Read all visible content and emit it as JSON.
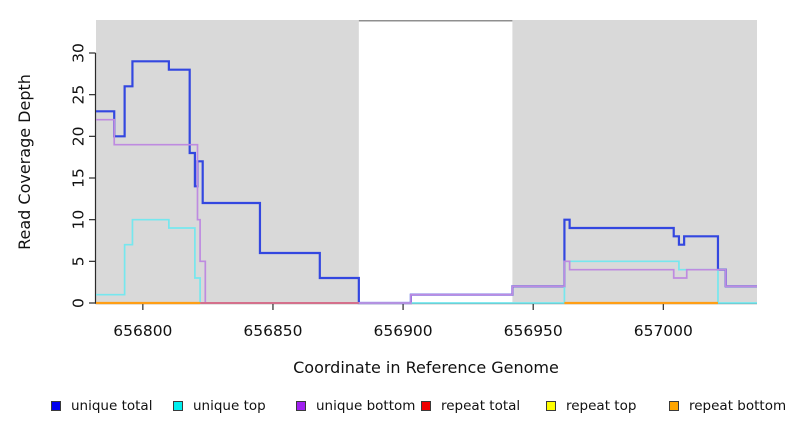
{
  "chart_data": {
    "type": "line",
    "subtype": "step-coverage",
    "title": "",
    "xlabel": "Coordinate in Reference Genome",
    "ylabel": "Read Coverage Depth",
    "xlim": [
      656782,
      657036
    ],
    "ylim": [
      0,
      34
    ],
    "x_ticks": [
      656800,
      656850,
      656900,
      656950,
      657000
    ],
    "y_ticks": [
      0,
      5,
      10,
      15,
      20,
      25,
      30
    ],
    "grid": false,
    "legend_position": "bottom",
    "plot_background_shade_color": "#d9d9d9",
    "shaded_regions": [
      [
        656782,
        656883
      ],
      [
        656942,
        657036
      ]
    ],
    "unshaded_gap": {
      "region": [
        656883,
        656942
      ],
      "top_border_color": "#8f8f8f"
    },
    "series": [
      {
        "name": "unique total",
        "legend_color": "#0000ee",
        "line_color": "#3347e0",
        "line_width": 2.2,
        "segments": [
          [
            [
              656782,
              23
            ],
            [
              656789,
              20
            ],
            [
              656793,
              26
            ],
            [
              656796,
              29
            ],
            [
              656810,
              28
            ],
            [
              656818,
              18
            ],
            [
              656820,
              14
            ],
            [
              656821,
              17
            ],
            [
              656823,
              12
            ],
            [
              656845,
              6
            ],
            [
              656868,
              3
            ],
            [
              656883,
              0
            ],
            [
              656903,
              1
            ],
            [
              656942,
              2
            ],
            [
              656962,
              10
            ],
            [
              656964,
              9
            ],
            [
              657004,
              8
            ],
            [
              657006,
              7
            ],
            [
              657008,
              8
            ],
            [
              657021,
              4
            ],
            [
              657024,
              2
            ],
            [
              657036,
              2
            ]
          ]
        ]
      },
      {
        "name": "unique top",
        "legend_color": "#00eeee",
        "line_color": "#76e7ee",
        "line_width": 1.7,
        "segments": [
          [
            [
              656782,
              1
            ],
            [
              656793,
              7
            ],
            [
              656796,
              10
            ],
            [
              656810,
              9
            ],
            [
              656820,
              3
            ],
            [
              656822,
              0
            ],
            [
              656962,
              5
            ],
            [
              657006,
              4
            ],
            [
              657021,
              0
            ],
            [
              657036,
              0
            ]
          ]
        ]
      },
      {
        "name": "unique bottom",
        "legend_color": "#a020f0",
        "line_color": "#be8be0",
        "line_width": 1.7,
        "segments": [
          [
            [
              656782,
              22
            ],
            [
              656789,
              19
            ],
            [
              656821,
              10
            ],
            [
              656822,
              5
            ],
            [
              656824,
              0
            ],
            [
              656903,
              1
            ],
            [
              656942,
              2
            ],
            [
              656962,
              5
            ],
            [
              656964,
              4
            ],
            [
              657004,
              3
            ],
            [
              657009,
              4
            ],
            [
              657024,
              2
            ],
            [
              657036,
              2
            ]
          ]
        ]
      },
      {
        "name": "repeat total",
        "legend_color": "#ee0000",
        "line_color": "#d4708c",
        "line_width": 2,
        "segments": [
          [
            [
              656782,
              0
            ],
            [
              656883,
              0
            ]
          ],
          [
            [
              656962,
              0
            ],
            [
              657021,
              0
            ]
          ]
        ]
      },
      {
        "name": "repeat top",
        "legend_color": "#ffff00",
        "line_color": "#f0ee70",
        "line_width": 1.7,
        "segments": [
          [
            [
              656782,
              0
            ],
            [
              656822,
              0
            ]
          ],
          [
            [
              656962,
              0
            ],
            [
              657021,
              0
            ]
          ]
        ]
      },
      {
        "name": "repeat bottom",
        "legend_color": "#ffa500",
        "line_color": "#ff9e15",
        "line_width": 2.2,
        "segments": [
          [
            [
              656782,
              0
            ],
            [
              656822,
              0
            ]
          ],
          [
            [
              656962,
              0
            ],
            [
              657021,
              0
            ]
          ]
        ]
      }
    ]
  }
}
